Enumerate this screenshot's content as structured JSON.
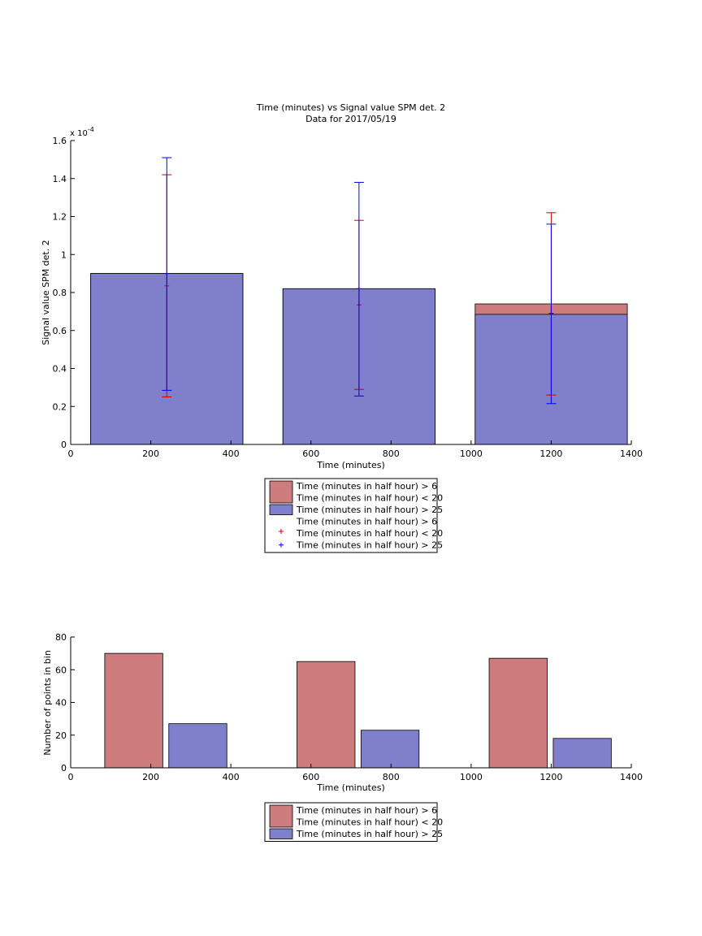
{
  "colors": {
    "red_bar": "#cc7c7c",
    "blue_bar": "#7f7fcc",
    "red_err": "#cc0000",
    "blue_err": "#0000ee",
    "axis": "#000000"
  },
  "chart_data": [
    {
      "type": "bar",
      "title": "Time (minutes) vs Signal value SPM det. 2",
      "subtitle": "Data for 2017/05/19",
      "xlabel": "Time (minutes)",
      "ylabel": "Signal value SPM det. 2",
      "y_exponent_label": "x 10",
      "y_exponent": "-4",
      "xlim": [
        0,
        1400
      ],
      "ylim": [
        0,
        1.6
      ],
      "xticks": [
        "0",
        "200",
        "400",
        "600",
        "800",
        "1000",
        "1200",
        "1400"
      ],
      "yticks": [
        "0",
        "0.2",
        "0.4",
        "0.6",
        "0.8",
        "1",
        "1.2",
        "1.4",
        "1.6"
      ],
      "bar_span": [
        [
          50,
          430
        ],
        [
          530,
          910
        ],
        [
          1010,
          1390
        ]
      ],
      "series": [
        {
          "name": "Time (minutes in half hour) > 6 Time (minutes in half hour) < 20",
          "color": "#cc7c7c",
          "bar_values": [
            0.9,
            0.82,
            0.74
          ],
          "error_x": [
            240,
            720,
            1200
          ],
          "error_center": [
            0.835,
            0.735,
            0.74
          ],
          "error_low": [
            0.25,
            0.29,
            0.26
          ],
          "error_high": [
            1.42,
            1.18,
            1.22
          ]
        },
        {
          "name": "Time (minutes in half hour) > 25",
          "color": "#7f7fcc",
          "bar_values": [
            0.9,
            0.82,
            0.685
          ],
          "error_x": [
            240,
            720,
            1200
          ],
          "error_center": [
            0.9,
            0.82,
            0.69
          ],
          "error_low": [
            0.285,
            0.255,
            0.215
          ],
          "error_high": [
            1.51,
            1.38,
            1.16
          ]
        }
      ],
      "legend": {
        "placement": "below",
        "entries": [
          {
            "kind": "patch",
            "color": "#cc7c7c",
            "line1": "Time (minutes in half hour) > 6",
            "line2": "Time (minutes in half hour) < 20"
          },
          {
            "kind": "patch",
            "color": "#7f7fcc",
            "line1": "Time (minutes in half hour) > 25",
            "line2": ""
          },
          {
            "kind": "marker",
            "color": "#cc0000",
            "line1": "Time (minutes in half hour) > 6",
            "line2": "Time (minutes in half hour) < 20"
          },
          {
            "kind": "marker",
            "color": "#0000ee",
            "line1": "Time (minutes in half hour) > 25",
            "line2": ""
          }
        ]
      }
    },
    {
      "type": "bar",
      "xlabel": "Time (minutes)",
      "ylabel": "Number of points in bin",
      "xlim": [
        0,
        1400
      ],
      "ylim": [
        0,
        80
      ],
      "xticks": [
        "0",
        "200",
        "400",
        "600",
        "800",
        "1000",
        "1200",
        "1400"
      ],
      "yticks": [
        "0",
        "20",
        "40",
        "60",
        "80"
      ],
      "series": [
        {
          "name": "Time (minutes in half hour) > 6 Time (minutes in half hour) < 20",
          "color": "#cc7c7c",
          "bars": [
            [
              85,
              230,
              70
            ],
            [
              565,
              710,
              65
            ],
            [
              1045,
              1190,
              67
            ]
          ]
        },
        {
          "name": "Time (minutes in half hour) > 25",
          "color": "#7f7fcc",
          "bars": [
            [
              245,
              390,
              27
            ],
            [
              725,
              870,
              23
            ],
            [
              1205,
              1350,
              18
            ]
          ]
        }
      ],
      "legend": {
        "placement": "below",
        "entries": [
          {
            "kind": "patch",
            "color": "#cc7c7c",
            "line1": "Time (minutes in half hour) > 6",
            "line2": "Time (minutes in half hour) < 20"
          },
          {
            "kind": "patch",
            "color": "#7f7fcc",
            "line1": "Time (minutes in half hour) > 25",
            "line2": ""
          }
        ]
      }
    }
  ]
}
